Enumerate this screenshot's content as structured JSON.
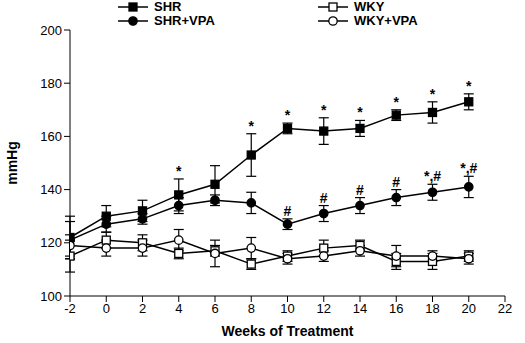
{
  "chart_data": {
    "type": "line",
    "x_label": "Weeks of Treatment",
    "y_label": "mmHg",
    "x": [
      -2,
      0,
      2,
      4,
      6,
      8,
      10,
      12,
      14,
      16,
      18,
      20
    ],
    "xlim": [
      -2,
      22
    ],
    "xticks": [
      -2,
      0,
      2,
      4,
      6,
      8,
      10,
      12,
      14,
      16,
      18,
      20,
      22
    ],
    "ylim": [
      100,
      200
    ],
    "yticks": [
      100,
      120,
      140,
      160,
      180,
      200
    ],
    "legend": "top",
    "series": [
      {
        "name": "SHR",
        "color": "#000000",
        "marker": "filled_square",
        "values": [
          122,
          130,
          132,
          138,
          142,
          153,
          163,
          162,
          163,
          168,
          169,
          173
        ],
        "errors": [
          8,
          4,
          4,
          6,
          7,
          8,
          2,
          5,
          3,
          2,
          4,
          3
        ],
        "annotations": [
          null,
          null,
          null,
          "*",
          null,
          "*",
          "*",
          "*",
          "*",
          "*",
          "*",
          "*"
        ]
      },
      {
        "name": "SHR+VPA",
        "color": "#000000",
        "marker": "filled_circle",
        "values": [
          121,
          127,
          129,
          134,
          136,
          135,
          127,
          131,
          134,
          137,
          139,
          141
        ],
        "errors": [
          7,
          3,
          2,
          3,
          2,
          4,
          2,
          3,
          3,
          3,
          3,
          4
        ],
        "annotations": [
          null,
          null,
          null,
          null,
          null,
          null,
          "#",
          "#",
          "#",
          "#",
          "*,#",
          "*,#"
        ]
      },
      {
        "name": "WKY",
        "color": "#000000",
        "marker": "open_square",
        "values": [
          115,
          121,
          120,
          116,
          117,
          112,
          115,
          118,
          119,
          113,
          113,
          115
        ],
        "errors": [
          6,
          3,
          3,
          2,
          2,
          2,
          2,
          3,
          2,
          3,
          3,
          2
        ],
        "annotations": [
          null,
          null,
          null,
          null,
          null,
          null,
          null,
          null,
          null,
          null,
          null,
          null
        ]
      },
      {
        "name": "WKY+VPA",
        "color": "#000000",
        "marker": "open_circle",
        "values": [
          119,
          118,
          118,
          121,
          116,
          118,
          114,
          115,
          117,
          115,
          115,
          114
        ],
        "errors": [
          4,
          3,
          3,
          4,
          5,
          4,
          2,
          2,
          2,
          4,
          2,
          2
        ],
        "annotations": [
          null,
          null,
          null,
          null,
          null,
          null,
          null,
          null,
          null,
          null,
          null,
          null
        ]
      }
    ]
  }
}
